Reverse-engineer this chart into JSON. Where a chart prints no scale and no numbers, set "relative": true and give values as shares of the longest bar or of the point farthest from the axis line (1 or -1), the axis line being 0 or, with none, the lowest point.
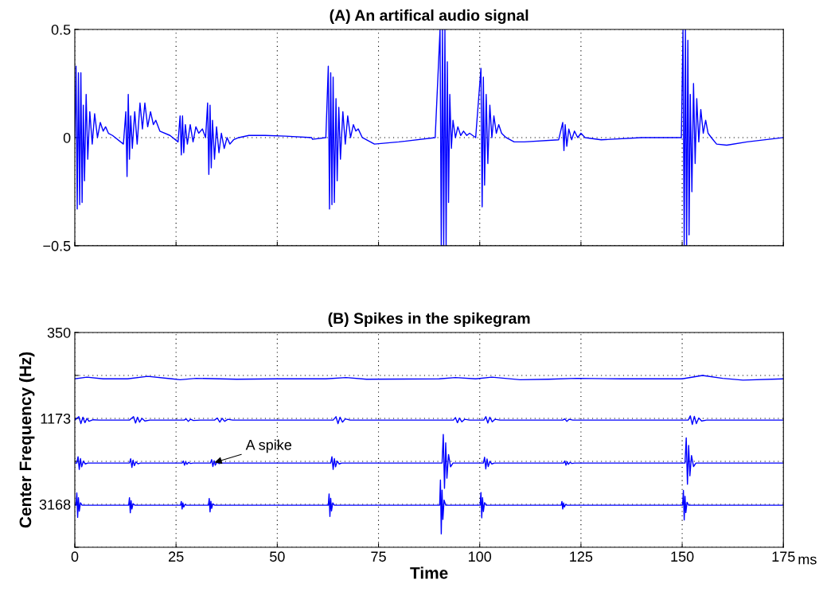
{
  "chart_data": [
    {
      "type": "line",
      "title": "(A) An artifical audio signal",
      "xlim": [
        0,
        175
      ],
      "xticks": [
        0,
        25,
        50,
        75,
        100,
        125,
        150,
        175
      ],
      "ylim": [
        -0.5,
        0.5
      ],
      "yticks": [
        {
          "value": -0.5,
          "label": "−0.5"
        },
        0,
        0.5
      ],
      "tick_labels": "y",
      "grid": true,
      "series": [
        {
          "color": "#0000ff",
          "x": [
            0,
            0.3,
            0.6,
            0.9,
            1.2,
            1.5,
            1.8,
            2.1,
            2.4,
            2.8,
            3.2,
            3.7,
            4.3,
            4.9,
            5.6,
            6.3,
            7.0,
            7.6,
            8.3,
            9.3,
            12.0,
            12.6,
            12.9,
            13.2,
            13.5,
            13.8,
            14.2,
            14.8,
            15.4,
            16.1,
            16.7,
            17.3,
            18.0,
            18.7,
            19.4,
            20.0,
            21.0,
            23.5,
            25.5,
            26.0,
            26.3,
            26.6,
            26.9,
            27.3,
            27.8,
            28.5,
            29.2,
            29.9,
            30.6,
            31.5,
            32.3,
            32.8,
            33.1,
            33.4,
            33.7,
            34.0,
            34.5,
            35.0,
            35.6,
            36.2,
            36.9,
            37.6,
            38.3,
            39.2,
            40.5,
            43.0,
            47.0,
            52.0,
            58.5,
            58.7,
            62.0,
            62.6,
            62.9,
            63.2,
            63.5,
            63.8,
            64.1,
            64.5,
            64.8,
            65.2,
            65.6,
            66.2,
            66.8,
            67.4,
            68.1,
            68.8,
            69.4,
            70.0,
            71.0,
            74.0,
            80.0,
            89.0,
            90.2,
            90.5,
            90.8,
            91.1,
            91.4,
            91.7,
            92.0,
            92.3,
            92.6,
            93.0,
            93.4,
            94.0,
            94.6,
            95.3,
            96.0,
            96.8,
            97.5,
            99.0,
            100.3,
            100.6,
            100.9,
            101.2,
            101.6,
            102.0,
            102.5,
            103.0,
            103.5,
            104.1,
            104.7,
            105.4,
            106.5,
            108.5,
            111.0,
            119.5,
            120.5,
            120.8,
            121.1,
            121.5,
            122.0,
            122.7,
            123.4,
            124.2,
            125.0,
            126.0,
            130.0,
            140.0,
            149.8,
            150.2,
            150.5,
            150.8,
            151.1,
            151.4,
            151.7,
            152.0,
            152.4,
            152.8,
            153.2,
            153.6,
            154.1,
            154.6,
            155.2,
            155.8,
            156.4,
            157.2,
            158.5,
            161.0,
            166.0,
            175.0
          ],
          "values": [
            0,
            0.33,
            -0.33,
            0.3,
            -0.31,
            0.3,
            -0.3,
            0.15,
            -0.2,
            0.2,
            -0.1,
            0.12,
            -0.03,
            0.11,
            0.0,
            0.07,
            0.03,
            0.05,
            0.02,
            0.01,
            -0.03,
            0.12,
            -0.18,
            0.2,
            -0.1,
            0.1,
            -0.05,
            0.12,
            -0.03,
            0.16,
            0.04,
            0.16,
            0.05,
            0.12,
            0.06,
            0.08,
            0.03,
            0.01,
            -0.02,
            0.1,
            -0.08,
            0.1,
            -0.07,
            0.06,
            -0.03,
            0.06,
            -0.02,
            0.05,
            0.02,
            0.04,
            0.0,
            0.16,
            -0.17,
            0.15,
            -0.14,
            0.08,
            -0.1,
            0.05,
            -0.07,
            0.02,
            -0.05,
            0.0,
            -0.03,
            -0.01,
            0.0,
            0.01,
            0.01,
            0.007,
            0.0,
            -0.008,
            0.0,
            0.33,
            -0.33,
            0.3,
            -0.31,
            0.28,
            -0.3,
            0.18,
            -0.2,
            0.14,
            -0.1,
            0.12,
            -0.03,
            0.1,
            0.0,
            0.06,
            0.03,
            0.04,
            0.0,
            -0.03,
            -0.02,
            0.0,
            0.5,
            -0.5,
            0.5,
            -0.5,
            0.5,
            -0.5,
            0.35,
            -0.3,
            0.2,
            -0.05,
            0.08,
            0.0,
            0.05,
            0.01,
            0.03,
            0.01,
            0.02,
            0.0,
            0.32,
            -0.32,
            0.28,
            -0.22,
            0.2,
            -0.12,
            0.15,
            0.0,
            0.1,
            0.02,
            0.06,
            0.02,
            0.0,
            -0.02,
            -0.02,
            -0.01,
            0.07,
            -0.06,
            0.06,
            -0.04,
            0.04,
            -0.01,
            0.03,
            0.0,
            0.02,
            0.0,
            -0.01,
            0.0,
            0.0,
            0.5,
            -0.5,
            0.5,
            -0.5,
            0.45,
            -0.45,
            0.2,
            -0.25,
            0.25,
            -0.12,
            0.18,
            -0.02,
            0.13,
            0.02,
            0.08,
            0.02,
            0.0,
            -0.03,
            -0.035,
            -0.02,
            0.0
          ]
        }
      ]
    },
    {
      "type": "line",
      "title": "(B) Spikes in the spikegram",
      "xlabel": "Time",
      "ylabel": "Center Frequency (Hz)",
      "xlim": [
        0,
        175
      ],
      "xticks": [
        0,
        25,
        50,
        75,
        100,
        125,
        150,
        175
      ],
      "relative": true,
      "y_categories": [
        "350",
        null,
        "1173",
        null,
        "3168",
        null
      ],
      "grid": true,
      "annotations": [
        {
          "text": "A spike",
          "x": 34,
          "y": 0.49
        },
        "ms"
      ],
      "series": [
        {
          "color": "#0000ff",
          "x": [
            0,
            3,
            7,
            13,
            18,
            24,
            26,
            30,
            40,
            50,
            62,
            67,
            72,
            90,
            94,
            99,
            103,
            110,
            117,
            124,
            135,
            150,
            155,
            160,
            165,
            175
          ],
          "values": [
            0.98,
            0.99,
            0.98,
            0.98,
            0.995,
            0.98,
            0.975,
            0.983,
            0.978,
            0.98,
            0.98,
            0.988,
            0.978,
            0.98,
            0.988,
            0.98,
            0.99,
            0.975,
            0.978,
            0.983,
            0.98,
            0.98,
            1.0,
            0.983,
            0.973,
            0.98
          ]
        },
        {
          "color": "#0000ff",
          "x": [
            0,
            1,
            1.5,
            2,
            2.5,
            3,
            3.5,
            4.5,
            6,
            13.5,
            14.5,
            15,
            15.5,
            16,
            16.6,
            17.3,
            18.5,
            27,
            27.5,
            28,
            28.6,
            29.3,
            31,
            34.5,
            35.2,
            35.8,
            36.4,
            37,
            37.8,
            39,
            63.8,
            64.5,
            65,
            65.5,
            66.1,
            66.8,
            68,
            93.5,
            94,
            94.5,
            95,
            95.6,
            96.3,
            97.5,
            101,
            101.5,
            102,
            102.5,
            103.1,
            103.8,
            105,
            120.5,
            121,
            121.5,
            122.1,
            123,
            151.5,
            152,
            152.5,
            153,
            153.5,
            154.1,
            154.8,
            156,
            175
          ],
          "values": [
            0.74,
            0.76,
            0.72,
            0.757,
            0.725,
            0.75,
            0.733,
            0.742,
            0.74,
            0.74,
            0.76,
            0.723,
            0.757,
            0.728,
            0.75,
            0.735,
            0.74,
            0.74,
            0.747,
            0.733,
            0.745,
            0.738,
            0.74,
            0.74,
            0.752,
            0.728,
            0.75,
            0.733,
            0.745,
            0.74,
            0.74,
            0.76,
            0.72,
            0.757,
            0.728,
            0.747,
            0.74,
            0.74,
            0.755,
            0.725,
            0.752,
            0.73,
            0.745,
            0.74,
            0.74,
            0.76,
            0.723,
            0.757,
            0.73,
            0.745,
            0.74,
            0.74,
            0.747,
            0.733,
            0.745,
            0.74,
            0.74,
            0.765,
            0.715,
            0.762,
            0.72,
            0.752,
            0.735,
            0.74,
            0.74
          ]
        },
        {
          "color": "#0000ff",
          "x": [
            0,
            0.5,
            0.8,
            1.1,
            1.4,
            1.7,
            2.1,
            2.6,
            3.2,
            13.5,
            13.8,
            14.1,
            14.4,
            14.7,
            15.1,
            15.6,
            16.2,
            26.5,
            26.8,
            27.1,
            27.4,
            27.7,
            28.1,
            28.6,
            29.2,
            33.5,
            33.8,
            34.1,
            34.4,
            34.7,
            35.1,
            35.6,
            36.2,
            63.2,
            63.5,
            63.8,
            64.1,
            64.4,
            64.8,
            65.3,
            65.9,
            90.7,
            91,
            91.3,
            91.6,
            91.9,
            92.3,
            92.8,
            93.4,
            100.9,
            101.2,
            101.5,
            101.8,
            102.1,
            102.5,
            103,
            103.6,
            120.7,
            121,
            121.3,
            121.6,
            121.9,
            122.3,
            122.8,
            123.4,
            150.7,
            151,
            151.3,
            151.6,
            151.9,
            152.3,
            152.8,
            153.4,
            175
          ],
          "values": [
            0.49,
            0.49,
            0.527,
            0.453,
            0.516,
            0.468,
            0.501,
            0.485,
            0.49,
            0.49,
            0.515,
            0.465,
            0.507,
            0.475,
            0.497,
            0.486,
            0.49,
            0.49,
            0.502,
            0.478,
            0.498,
            0.483,
            0.494,
            0.488,
            0.49,
            0.49,
            0.51,
            0.47,
            0.504,
            0.478,
            0.496,
            0.487,
            0.49,
            0.49,
            0.527,
            0.453,
            0.516,
            0.468,
            0.501,
            0.485,
            0.49,
            0.49,
            0.657,
            0.343,
            0.608,
            0.402,
            0.54,
            0.468,
            0.49,
            0.49,
            0.524,
            0.456,
            0.514,
            0.47,
            0.5,
            0.485,
            0.49,
            0.49,
            0.502,
            0.478,
            0.498,
            0.483,
            0.494,
            0.488,
            0.49,
            0.49,
            0.637,
            0.367,
            0.593,
            0.416,
            0.534,
            0.47,
            0.49,
            0.49
          ]
        },
        {
          "color": "#0000ff",
          "x": [
            0,
            0.3,
            0.5,
            0.7,
            0.9,
            1.1,
            1.4,
            1.8,
            13.3,
            13.5,
            13.7,
            13.9,
            14.1,
            14.4,
            14.8,
            26.1,
            26.3,
            26.5,
            26.7,
            26.9,
            27.2,
            27.6,
            33,
            33.2,
            33.4,
            33.6,
            33.8,
            34.1,
            34.5,
            62.6,
            62.8,
            63,
            63.2,
            63.4,
            63.7,
            64.1,
            90.1,
            90.3,
            90.5,
            90.7,
            90.9,
            91.2,
            91.6,
            100.1,
            100.3,
            100.5,
            100.7,
            100.9,
            101.2,
            101.6,
            120.1,
            120.3,
            120.5,
            120.7,
            120.9,
            121.2,
            121.6,
            150.1,
            150.3,
            150.5,
            150.7,
            150.9,
            151.2,
            151.6,
            175
          ],
          "values": [
            0.245,
            0.245,
            0.316,
            0.174,
            0.288,
            0.21,
            0.259,
            0.245,
            0.245,
            0.289,
            0.201,
            0.271,
            0.223,
            0.254,
            0.245,
            0.245,
            0.267,
            0.223,
            0.258,
            0.234,
            0.249,
            0.245,
            0.245,
            0.284,
            0.206,
            0.268,
            0.226,
            0.253,
            0.245,
            0.245,
            0.311,
            0.179,
            0.285,
            0.212,
            0.258,
            0.245,
            0.245,
            0.392,
            0.078,
            0.333,
            0.162,
            0.275,
            0.245,
            0.245,
            0.319,
            0.171,
            0.289,
            0.208,
            0.26,
            0.245,
            0.245,
            0.267,
            0.223,
            0.258,
            0.234,
            0.249,
            0.245,
            0.245,
            0.331,
            0.159,
            0.297,
            0.202,
            0.262,
            0.245,
            0.245
          ]
        }
      ]
    }
  ]
}
